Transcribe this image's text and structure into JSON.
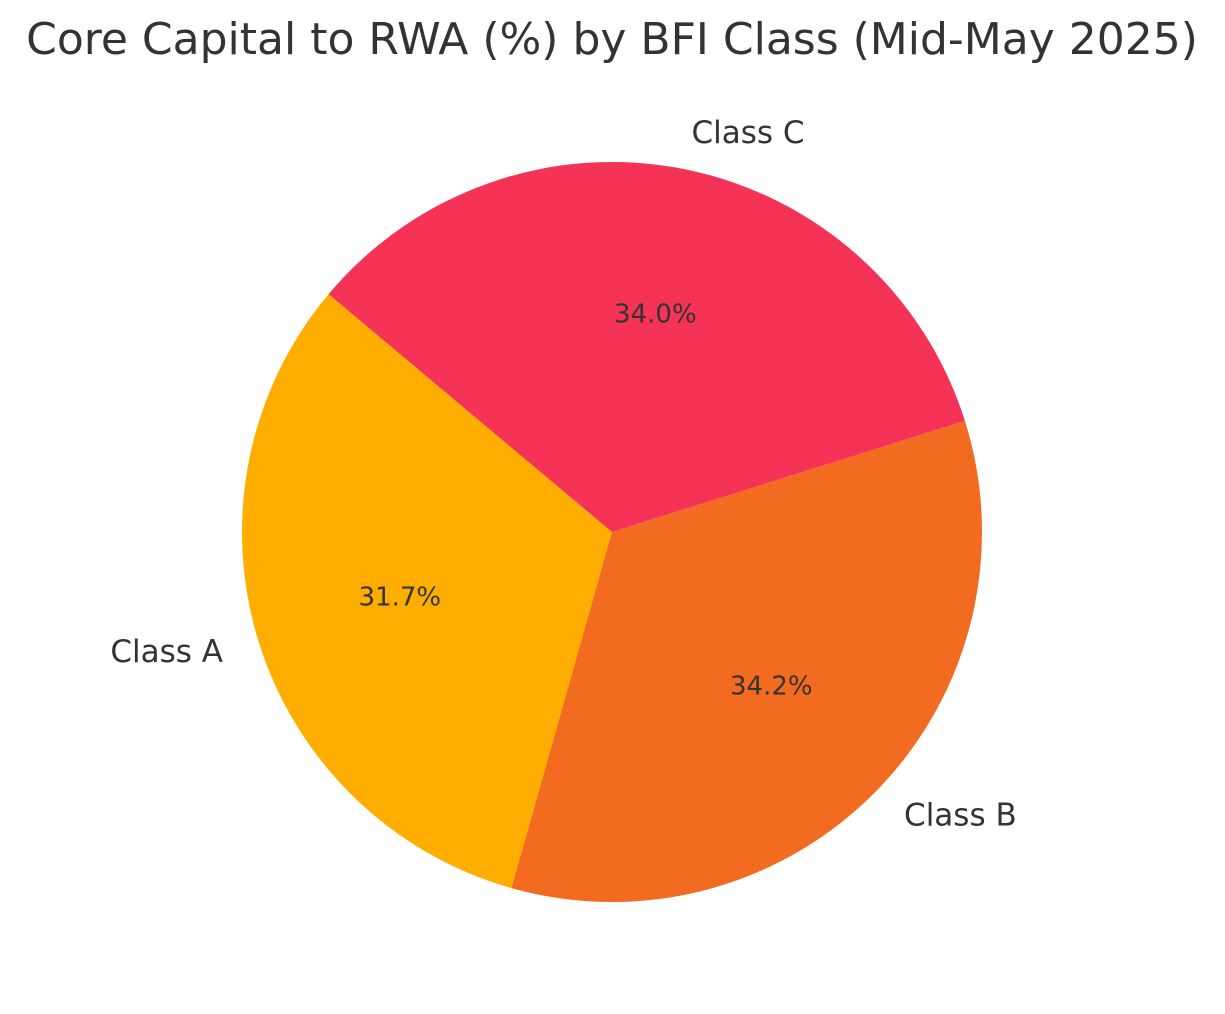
{
  "chart_data": {
    "type": "pie",
    "title": "Core Capital to RWA (%) by BFI Class (Mid-May 2025)",
    "categories": [
      "Class A",
      "Class B",
      "Class C"
    ],
    "values": [
      31.7,
      34.2,
      34.0
    ],
    "percent_labels": [
      "31.7%",
      "34.2%",
      "34.0%"
    ],
    "colors": [
      "#FFAE00",
      "#F26B21",
      "#F53357"
    ],
    "start_angle_deg": 140,
    "direction": "counterclockwise",
    "legend": "none"
  }
}
